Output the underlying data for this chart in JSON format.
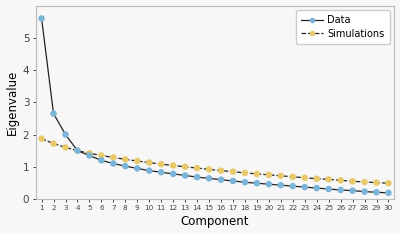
{
  "components": [
    1,
    2,
    3,
    4,
    5,
    6,
    7,
    8,
    9,
    10,
    11,
    12,
    13,
    14,
    15,
    16,
    17,
    18,
    19,
    20,
    21,
    22,
    23,
    24,
    25,
    26,
    27,
    28,
    29,
    30
  ],
  "data_eigenvalues": [
    5.6,
    2.65,
    2.0,
    1.5,
    1.35,
    1.2,
    1.1,
    1.02,
    0.95,
    0.88,
    0.83,
    0.78,
    0.73,
    0.68,
    0.64,
    0.6,
    0.56,
    0.52,
    0.49,
    0.46,
    0.43,
    0.4,
    0.37,
    0.34,
    0.31,
    0.28,
    0.26,
    0.23,
    0.21,
    0.19
  ],
  "sim_eigenvalues": [
    1.87,
    1.72,
    1.6,
    1.5,
    1.42,
    1.35,
    1.29,
    1.23,
    1.18,
    1.13,
    1.08,
    1.04,
    1.0,
    0.96,
    0.92,
    0.88,
    0.85,
    0.81,
    0.78,
    0.75,
    0.72,
    0.69,
    0.66,
    0.63,
    0.61,
    0.58,
    0.55,
    0.53,
    0.51,
    0.49
  ],
  "data_color": "#7ab4d8",
  "data_line_color": "#222222",
  "sim_color": "#e8c96a",
  "sim_line_color": "#222222",
  "xlabel": "Component",
  "ylabel": "Eigenvalue",
  "legend_data": "Data",
  "legend_sim": "Simulations",
  "ylim": [
    0,
    6.0
  ],
  "xlim": [
    0.5,
    30.5
  ],
  "bg_color": "#f7f7f7",
  "yticks": [
    0,
    1,
    2,
    3,
    4,
    5
  ],
  "marker_size": 22
}
